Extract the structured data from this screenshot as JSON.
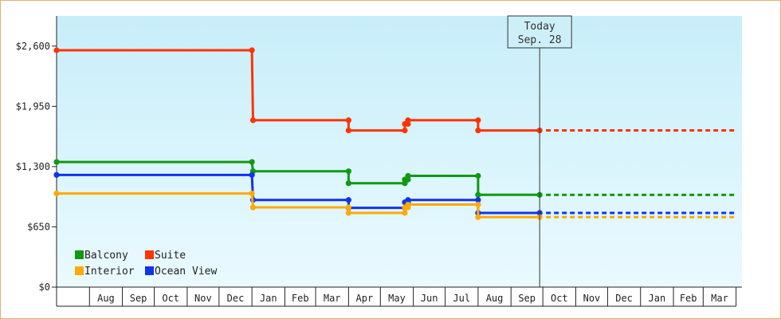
{
  "chart_data": {
    "type": "line",
    "step": true,
    "title": "",
    "xlabel": "",
    "ylabel": "",
    "ylim": [
      0,
      2925
    ],
    "y_ticks": [
      {
        "value": 0,
        "label": "$0"
      },
      {
        "value": 650,
        "label": "$650"
      },
      {
        "value": 1300,
        "label": "$1,300"
      },
      {
        "value": 1950,
        "label": "$1,950"
      },
      {
        "value": 2600,
        "label": "$2,600"
      }
    ],
    "x_domain": [
      "2011-07-01",
      "2012-03-31"
    ],
    "month_ticks": [
      {
        "start": "2011-07-01",
        "label": ""
      },
      {
        "start": "2011-08-01",
        "label": "Aug"
      },
      {
        "start": "2011-09-01",
        "label": "Sep"
      },
      {
        "start": "2011-10-01",
        "label": "Oct"
      },
      {
        "start": "2011-11-01",
        "label": "Nov"
      },
      {
        "start": "2011-12-01",
        "label": "Dec"
      },
      {
        "start": "2012-01-01",
        "label": "Jan"
      },
      {
        "start": "2012-02-01",
        "label": "Feb"
      },
      {
        "start": "2012-03-01",
        "label": "Mar"
      },
      {
        "start": "2012-04-01",
        "label": "Apr"
      },
      {
        "start": "2012-05-01",
        "label": "May"
      },
      {
        "start": "2012-06-01",
        "label": "Jun"
      },
      {
        "start": "2012-07-01",
        "label": "Jul"
      },
      {
        "start": "2012-08-01",
        "label": "Aug"
      },
      {
        "start": "2012-09-01",
        "label": "Sep"
      },
      {
        "start": "2012-10-01",
        "label": "Oct"
      },
      {
        "start": "2012-11-01",
        "label": "Nov"
      },
      {
        "start": "2012-12-01",
        "label": "Dec"
      },
      {
        "start": "2013-01-01",
        "label": "Jan"
      },
      {
        "start": "2013-02-01",
        "label": "Feb"
      },
      {
        "start": "2013-03-01",
        "label": "Mar"
      }
    ],
    "x_end": "2013-04-01",
    "today": {
      "date": "2012-09-28",
      "label_line1": "Today",
      "label_line2": "Sep. 28"
    },
    "projection_end": "2013-03-31",
    "legend_placement": "bottom-left",
    "series": [
      {
        "name": "Suite",
        "color": "#ff3300",
        "points": [
          {
            "date": "2011-07-01",
            "value": 2555
          },
          {
            "date": "2012-01-01",
            "value": 2555
          },
          {
            "date": "2012-01-02",
            "value": 1800
          },
          {
            "date": "2012-04-01",
            "value": 1800
          },
          {
            "date": "2012-04-01",
            "value": 1690
          },
          {
            "date": "2012-05-24",
            "value": 1690
          },
          {
            "date": "2012-05-24",
            "value": 1760
          },
          {
            "date": "2012-05-27",
            "value": 1760
          },
          {
            "date": "2012-05-27",
            "value": 1800
          },
          {
            "date": "2012-08-01",
            "value": 1800
          },
          {
            "date": "2012-08-01",
            "value": 1690
          },
          {
            "date": "2012-09-28",
            "value": 1690
          }
        ]
      },
      {
        "name": "Balcony",
        "color": "#119911",
        "points": [
          {
            "date": "2011-07-01",
            "value": 1350
          },
          {
            "date": "2012-01-01",
            "value": 1350
          },
          {
            "date": "2012-01-02",
            "value": 1250
          },
          {
            "date": "2012-04-01",
            "value": 1250
          },
          {
            "date": "2012-04-01",
            "value": 1120
          },
          {
            "date": "2012-05-24",
            "value": 1120
          },
          {
            "date": "2012-05-24",
            "value": 1160
          },
          {
            "date": "2012-05-27",
            "value": 1160
          },
          {
            "date": "2012-05-27",
            "value": 1200
          },
          {
            "date": "2012-08-01",
            "value": 1200
          },
          {
            "date": "2012-08-01",
            "value": 995
          },
          {
            "date": "2012-09-28",
            "value": 995
          }
        ]
      },
      {
        "name": "Ocean View",
        "color": "#1133ee",
        "points": [
          {
            "date": "2011-07-01",
            "value": 1210
          },
          {
            "date": "2012-01-01",
            "value": 1210
          },
          {
            "date": "2012-01-02",
            "value": 940
          },
          {
            "date": "2012-04-01",
            "value": 940
          },
          {
            "date": "2012-04-01",
            "value": 855
          },
          {
            "date": "2012-05-24",
            "value": 855
          },
          {
            "date": "2012-05-24",
            "value": 915
          },
          {
            "date": "2012-05-27",
            "value": 915
          },
          {
            "date": "2012-05-27",
            "value": 940
          },
          {
            "date": "2012-08-01",
            "value": 940
          },
          {
            "date": "2012-08-01",
            "value": 800
          },
          {
            "date": "2012-09-28",
            "value": 800
          }
        ]
      },
      {
        "name": "Interior",
        "color": "#ffaa00",
        "points": [
          {
            "date": "2011-07-01",
            "value": 1010
          },
          {
            "date": "2012-01-01",
            "value": 1010
          },
          {
            "date": "2012-01-02",
            "value": 860
          },
          {
            "date": "2012-04-01",
            "value": 860
          },
          {
            "date": "2012-04-01",
            "value": 800
          },
          {
            "date": "2012-05-24",
            "value": 800
          },
          {
            "date": "2012-05-24",
            "value": 860
          },
          {
            "date": "2012-05-27",
            "value": 860
          },
          {
            "date": "2012-05-27",
            "value": 890
          },
          {
            "date": "2012-08-01",
            "value": 890
          },
          {
            "date": "2012-08-01",
            "value": 755
          },
          {
            "date": "2012-09-28",
            "value": 755
          }
        ]
      }
    ],
    "legend": [
      {
        "name": "Balcony",
        "color": "#119911"
      },
      {
        "name": "Suite",
        "color": "#ff3300"
      },
      {
        "name": "Interior",
        "color": "#ffaa00"
      },
      {
        "name": "Ocean View",
        "color": "#1133ee"
      }
    ],
    "colors": {
      "plot_bg_top": "#c8eef9",
      "plot_bg_bottom": "#eafaff",
      "frame_border": "#e0b070"
    }
  }
}
